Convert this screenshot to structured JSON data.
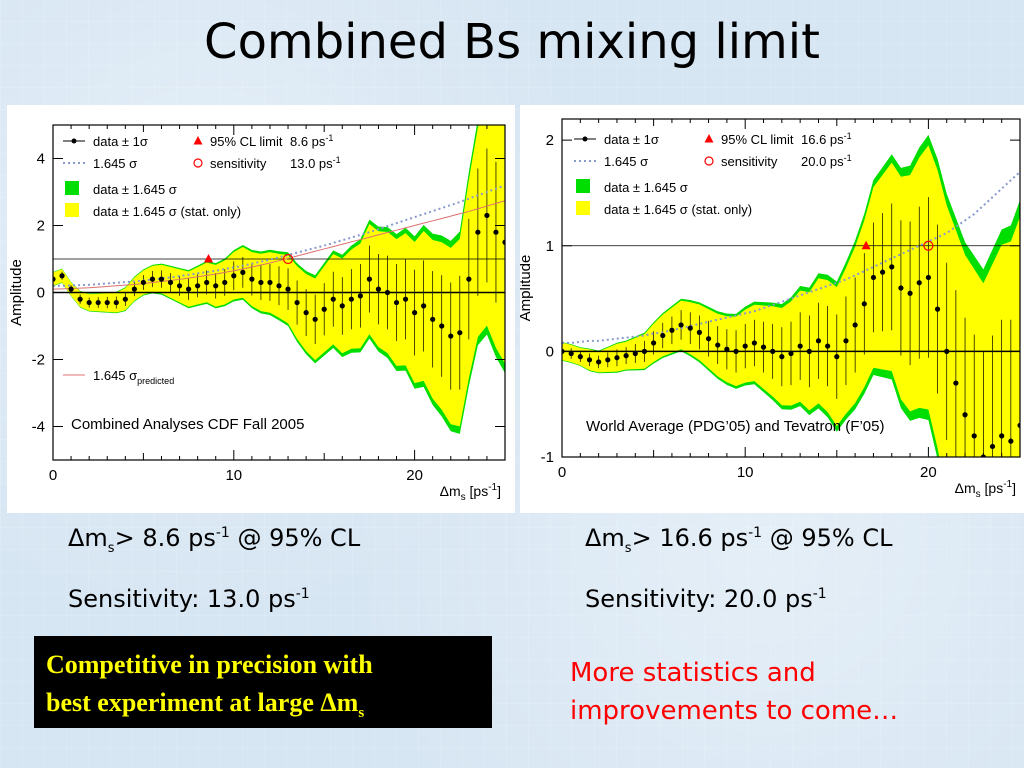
{
  "title": "Combined Bs mixing limit",
  "chart_data": [
    {
      "type": "line",
      "subtitle": "Combined Analyses CDF Fall 2005",
      "xlabel": "Δm",
      "xlabel_sub": "s",
      "xlabel_unit": "[ps",
      "xlabel_unit_sup": "-1",
      "xlabel_unit_end": "]",
      "ylabel": "Amplitude",
      "xlim": [
        0,
        25
      ],
      "ylim": [
        -5,
        5
      ],
      "xticks": [
        0,
        10,
        20
      ],
      "yticks": [
        -4,
        -2,
        0,
        2,
        4
      ],
      "legend": [
        {
          "label": "data ± 1σ",
          "value": "95% CL limit",
          "value2": "8.6 ps"
        },
        {
          "label": "1.645 σ",
          "value": "sensitivity",
          "value2": "13.0 ps"
        },
        {
          "label": "data ± 1.645 σ"
        },
        {
          "label": "data ± 1.645 σ (stat. only)"
        }
      ],
      "extra_legend": "1.645 σ",
      "extra_legend_sub": "predicted",
      "limit_x": 8.6,
      "sensitivity_x": 13.0,
      "x": [
        0.0,
        0.5,
        1.0,
        1.5,
        2.0,
        2.5,
        3.0,
        3.5,
        4.0,
        4.5,
        5.0,
        5.5,
        6.0,
        6.5,
        7.0,
        7.5,
        8.0,
        8.5,
        9.0,
        9.5,
        10.0,
        10.5,
        11.0,
        11.5,
        12.0,
        12.5,
        13.0,
        13.5,
        14.0,
        14.5,
        15.0,
        15.5,
        16.0,
        16.5,
        17.0,
        17.5,
        18.0,
        18.5,
        19.0,
        19.5,
        20.0,
        20.5,
        21.0,
        21.5,
        22.0,
        22.5,
        23.0,
        23.5,
        24.0,
        24.5,
        25.0
      ],
      "amplitude": [
        0.4,
        0.5,
        0.1,
        -0.2,
        -0.3,
        -0.3,
        -0.3,
        -0.3,
        -0.2,
        0.1,
        0.3,
        0.4,
        0.4,
        0.3,
        0.2,
        0.1,
        0.2,
        0.3,
        0.2,
        0.3,
        0.5,
        0.6,
        0.4,
        0.3,
        0.3,
        0.2,
        0.1,
        -0.3,
        -0.6,
        -0.8,
        -0.5,
        -0.2,
        -0.4,
        -0.2,
        -0.1,
        0.4,
        0.1,
        0.0,
        -0.3,
        -0.2,
        -0.6,
        -0.4,
        -0.8,
        -1.0,
        -1.3,
        -1.2,
        0.4,
        1.8,
        2.3,
        1.8,
        1.5
      ],
      "sigma": [
        0.12,
        0.12,
        0.12,
        0.14,
        0.15,
        0.16,
        0.17,
        0.18,
        0.2,
        0.21,
        0.22,
        0.24,
        0.26,
        0.28,
        0.3,
        0.32,
        0.34,
        0.36,
        0.38,
        0.4,
        0.43,
        0.46,
        0.49,
        0.52,
        0.55,
        0.58,
        0.62,
        0.66,
        0.7,
        0.74,
        0.78,
        0.82,
        0.86,
        0.9,
        0.95,
        1.0,
        1.05,
        1.1,
        1.15,
        1.2,
        1.28,
        1.36,
        1.44,
        1.52,
        1.6,
        1.7,
        1.8,
        1.9,
        2.0,
        2.1,
        2.2
      ],
      "sensitivity_curve": [
        0.2,
        0.2,
        0.21,
        0.22,
        0.23,
        0.25,
        0.27,
        0.29,
        0.31,
        0.33,
        0.36,
        0.39,
        0.42,
        0.45,
        0.49,
        0.53,
        0.57,
        0.61,
        0.65,
        0.7,
        0.75,
        0.8,
        0.86,
        0.92,
        0.98,
        1.05,
        1.12,
        1.19,
        1.26,
        1.33,
        1.4,
        1.48,
        1.56,
        1.64,
        1.72,
        1.8,
        1.89,
        1.98,
        2.07,
        2.16,
        2.25,
        2.34,
        2.43,
        2.52,
        2.61,
        2.7,
        2.8,
        2.9,
        3.0,
        3.1,
        3.2
      ],
      "predicted_curve": [
        0.1,
        0.11,
        0.12,
        0.13,
        0.14,
        0.16,
        0.18,
        0.2,
        0.22,
        0.24,
        0.27,
        0.3,
        0.33,
        0.36,
        0.39,
        0.43,
        0.47,
        0.51,
        0.55,
        0.6,
        0.65,
        0.7,
        0.76,
        0.82,
        0.88,
        0.95,
        1.02,
        1.09,
        1.16,
        1.23,
        1.3,
        1.37,
        1.44,
        1.51,
        1.58,
        1.65,
        1.72,
        1.79,
        1.86,
        1.93,
        2.0,
        2.07,
        2.14,
        2.21,
        2.28,
        2.35,
        2.42,
        2.5,
        2.58,
        2.66,
        2.74
      ]
    },
    {
      "type": "line",
      "subtitle": "World Average (PDG’05) and Tevatron (F’05)",
      "xlabel": "Δm",
      "xlabel_sub": "s",
      "xlabel_unit": "[ps",
      "xlabel_unit_sup": "-1",
      "xlabel_unit_end": "]",
      "ylabel": "Amplitude",
      "xlim": [
        0,
        25
      ],
      "ylim": [
        -1,
        2.2
      ],
      "xticks": [
        0,
        10,
        20
      ],
      "yticks": [
        -1,
        0,
        1,
        2
      ],
      "legend": [
        {
          "label": "data ± 1σ",
          "value": "95% CL limit",
          "value2": "16.6 ps"
        },
        {
          "label": "1.645 σ",
          "value": "sensitivity",
          "value2": "20.0 ps"
        },
        {
          "label": "data ± 1.645 σ"
        },
        {
          "label": "data ± 1.645 σ (stat. only)"
        }
      ],
      "limit_x": 16.6,
      "sensitivity_x": 20.0,
      "x": [
        0.0,
        0.5,
        1.0,
        1.5,
        2.0,
        2.5,
        3.0,
        3.5,
        4.0,
        4.5,
        5.0,
        5.5,
        6.0,
        6.5,
        7.0,
        7.5,
        8.0,
        8.5,
        9.0,
        9.5,
        10.0,
        10.5,
        11.0,
        11.5,
        12.0,
        12.5,
        13.0,
        13.5,
        14.0,
        14.5,
        15.0,
        15.5,
        16.0,
        16.5,
        17.0,
        17.5,
        18.0,
        18.5,
        19.0,
        19.5,
        20.0,
        20.5,
        21.0,
        21.5,
        22.0,
        22.5,
        23.0,
        23.5,
        24.0,
        24.5,
        25.0
      ],
      "amplitude": [
        0.0,
        -0.02,
        -0.05,
        -0.08,
        -0.1,
        -0.08,
        -0.06,
        -0.04,
        -0.02,
        0.0,
        0.08,
        0.15,
        0.2,
        0.25,
        0.22,
        0.18,
        0.12,
        0.06,
        0.02,
        0.0,
        0.05,
        0.08,
        0.04,
        0.0,
        -0.05,
        -0.02,
        0.05,
        0.0,
        0.1,
        0.05,
        -0.05,
        0.1,
        0.25,
        0.45,
        0.7,
        0.75,
        0.8,
        0.6,
        0.55,
        0.65,
        0.7,
        0.4,
        0.0,
        -0.3,
        -0.6,
        -0.8,
        -1.0,
        -0.9,
        -0.8,
        -0.85,
        -0.7
      ],
      "sigma": [
        0.05,
        0.05,
        0.05,
        0.06,
        0.06,
        0.07,
        0.08,
        0.08,
        0.09,
        0.1,
        0.11,
        0.12,
        0.13,
        0.14,
        0.15,
        0.16,
        0.17,
        0.18,
        0.19,
        0.2,
        0.21,
        0.22,
        0.24,
        0.26,
        0.28,
        0.3,
        0.32,
        0.34,
        0.36,
        0.38,
        0.4,
        0.42,
        0.45,
        0.48,
        0.52,
        0.56,
        0.6,
        0.64,
        0.68,
        0.72,
        0.76,
        0.8,
        0.84,
        0.88,
        0.92,
        0.96,
        1.0,
        1.05,
        1.1,
        1.15,
        1.2
      ],
      "sensitivity_curve": [
        0.08,
        0.08,
        0.09,
        0.1,
        0.1,
        0.11,
        0.12,
        0.13,
        0.14,
        0.15,
        0.17,
        0.18,
        0.2,
        0.22,
        0.24,
        0.26,
        0.28,
        0.3,
        0.32,
        0.34,
        0.36,
        0.38,
        0.41,
        0.44,
        0.47,
        0.5,
        0.53,
        0.56,
        0.59,
        0.62,
        0.65,
        0.68,
        0.72,
        0.76,
        0.8,
        0.84,
        0.88,
        0.92,
        0.96,
        1.0,
        1.04,
        1.08,
        1.12,
        1.18,
        1.24,
        1.3,
        1.38,
        1.46,
        1.54,
        1.62,
        1.7
      ]
    }
  ],
  "results": {
    "left_limit": "> 8.6 ps",
    "left_limit_sup": "-1",
    "left_limit_cl": " @ 95% CL",
    "left_sensitivity": "Sensitivity: 13.0 ps",
    "left_sensitivity_sup": "-1",
    "right_limit": "> 16.6 ps",
    "right_limit_sup": "-1",
    "right_limit_cl": " @ 95% CL",
    "right_sensitivity": "Sensitivity: 20.0 ps",
    "right_sensitivity_sup": "-1",
    "delta_symbol": "Δm",
    "delta_sub": "s"
  },
  "callout": {
    "line1": "Competitive in precision with",
    "line2": "best experiment at large Δm",
    "line2_sub": "s"
  },
  "note": {
    "line1": "More statistics and",
    "line2": "improvements to come…"
  },
  "colors": {
    "band_outer": "#00dd00",
    "band_inner": "#ffff00",
    "limit_marker": "#ff0000",
    "sensitivity_marker": "#ff0000",
    "sigma_line": "#8899cc",
    "predicted_line": "#e07070",
    "note": "#ff0000",
    "callout_text": "#ffff00"
  }
}
